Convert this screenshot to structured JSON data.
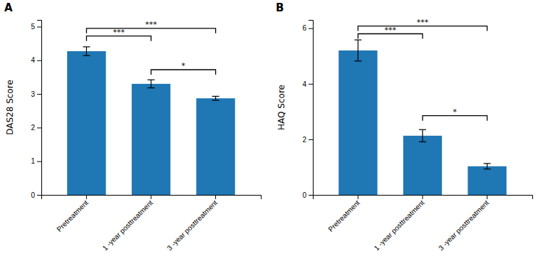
{
  "chart_data": [
    {
      "type": "bar",
      "title": "A",
      "ylabel": "DAS28 Score",
      "categories": [
        "Pretreatment",
        "1 -year posttreatment",
        "3 -year posttreatment"
      ],
      "values": [
        4.27,
        3.3,
        2.87
      ],
      "errors": [
        0.13,
        0.12,
        0.06
      ],
      "ylim": [
        0,
        5.2
      ],
      "yticks": [
        0,
        1,
        2,
        3,
        4,
        5
      ],
      "grid": false,
      "annotations": [
        {
          "x1": 0,
          "x2": 1,
          "y": 4.72,
          "label": "***"
        },
        {
          "x1": 0,
          "x2": 2,
          "y": 4.95,
          "label": "***"
        },
        {
          "x1": 1,
          "x2": 2,
          "y": 3.72,
          "label": "*"
        }
      ]
    },
    {
      "type": "bar",
      "title": "B",
      "ylabel": "HAQ Score",
      "categories": [
        "Pretreatment",
        "1 -year posttreatment",
        "3 -year posttreatment"
      ],
      "values": [
        5.2,
        2.13,
        1.03
      ],
      "errors": [
        0.38,
        0.22,
        0.1
      ],
      "ylim": [
        0,
        6.3
      ],
      "yticks": [
        0,
        2,
        4,
        6
      ],
      "grid": false,
      "annotations": [
        {
          "x1": 0,
          "x2": 1,
          "y": 5.8,
          "label": "***"
        },
        {
          "x1": 0,
          "x2": 2,
          "y": 6.08,
          "label": "***"
        },
        {
          "x1": 1,
          "x2": 2,
          "y": 2.85,
          "label": "*"
        }
      ]
    }
  ]
}
